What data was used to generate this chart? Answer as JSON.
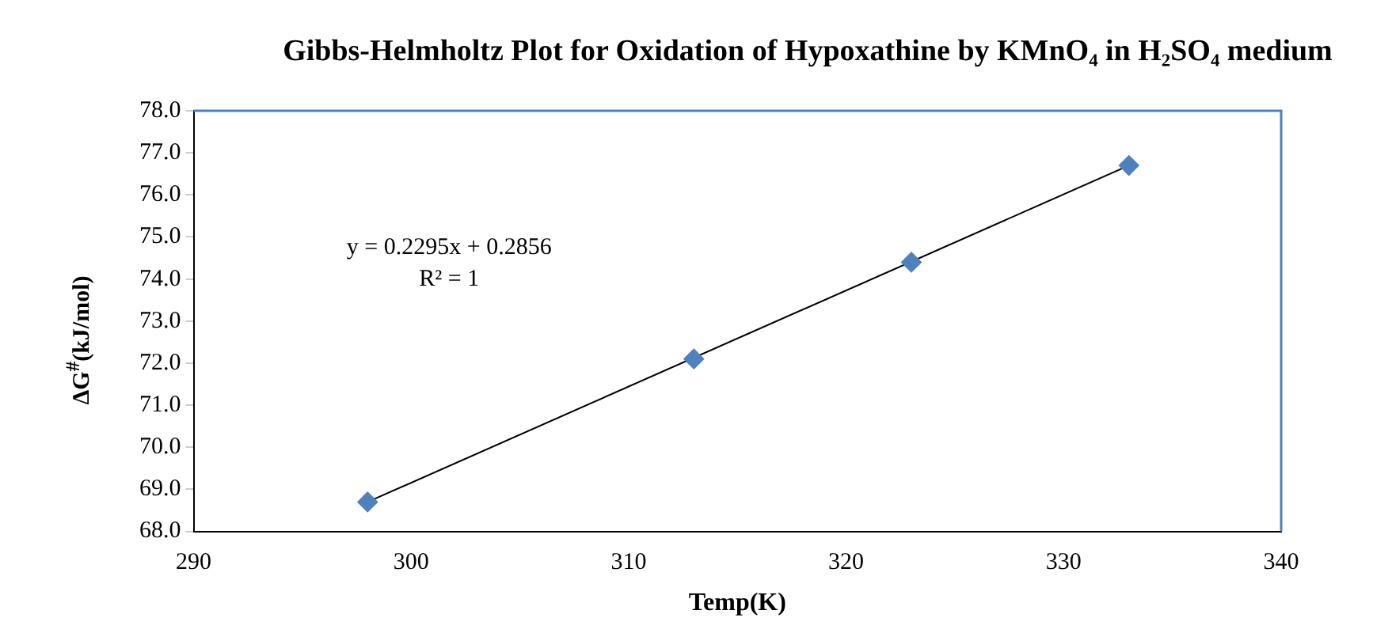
{
  "chart_data": {
    "type": "scatter",
    "title": "Gibbs-Helmholtz Plot for Oxidation of Hypoxathine by KMnO₄ in H₂SO₄  medium",
    "xlabel": "Temp(K)",
    "ylabel": "ΔG$^{#}$(kJ/mol)",
    "x": [
      298,
      313,
      323,
      333
    ],
    "series": [
      {
        "color": "#4f81bd",
        "marker": "diamond",
        "values": [
          68.7,
          72.1,
          74.4,
          76.7
        ]
      },
      {
        "type": "line",
        "color": "#000000",
        "marker": "none",
        "x": [
          298,
          333
        ],
        "values": [
          68.7,
          76.7
        ]
      }
    ],
    "annotations": [
      "y = 0.2295x + 0.2856",
      "R² = 1"
    ],
    "xlim": [
      290,
      340
    ],
    "xticks": [
      290,
      300,
      310,
      320,
      330,
      340
    ],
    "ylim": [
      68,
      78
    ],
    "yticks": [
      {
        "value": 68,
        "label": "68.0"
      },
      {
        "value": 69,
        "label": "69.0"
      },
      {
        "value": 70,
        "label": "70.0"
      },
      {
        "value": 71,
        "label": "71.0"
      },
      {
        "value": 72,
        "label": "72.0"
      },
      {
        "value": 73,
        "label": "73.0"
      },
      {
        "value": 74,
        "label": "74.0"
      },
      {
        "value": 75,
        "label": "75.0"
      },
      {
        "value": 76,
        "label": "76.0"
      },
      {
        "value": 77,
        "label": "77.0"
      },
      {
        "value": 78,
        "label": "78.0"
      }
    ],
    "grid": false,
    "legend": false
  }
}
